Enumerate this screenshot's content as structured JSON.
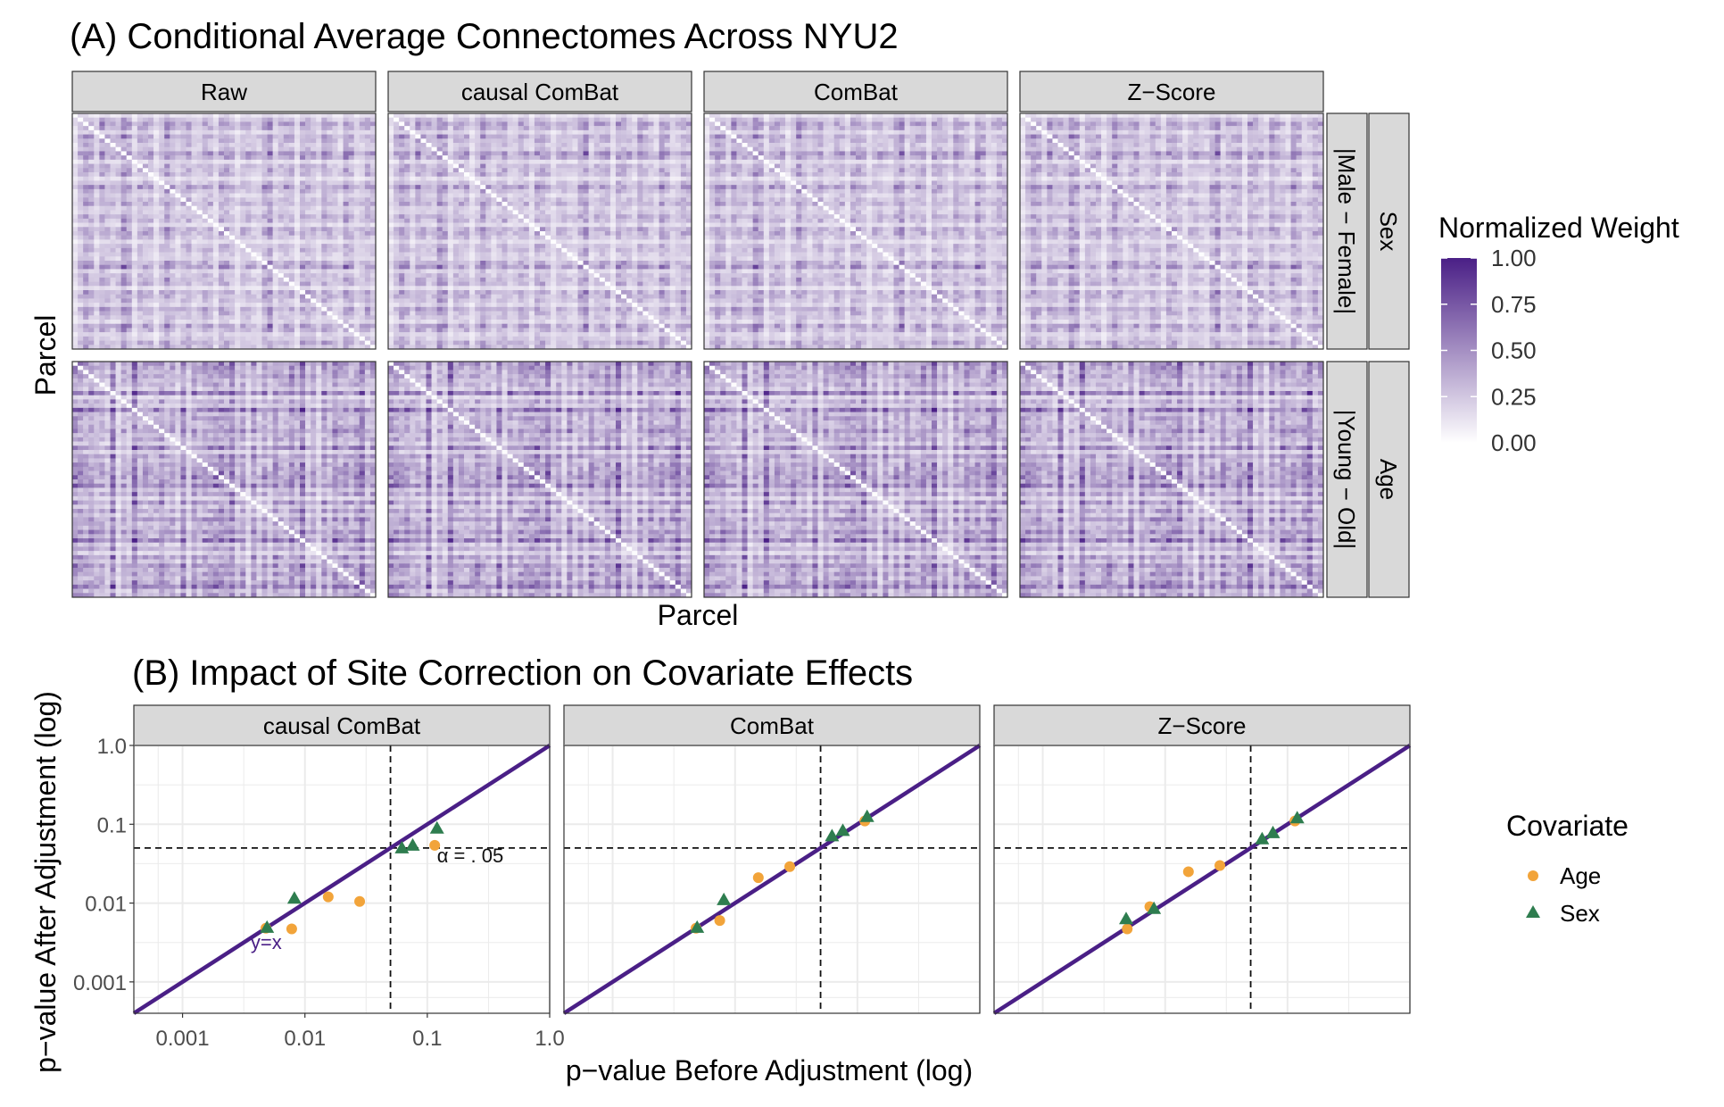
{
  "colors": {
    "strip_bg": "#d9d9d9",
    "heat_low": "#ffffff",
    "heat_high": "#4a1f86",
    "age": "#f2a43a",
    "sex": "#2e7d4f",
    "identity_line": "#4a1f86",
    "grid": "#ebebeb",
    "panel_border": "#333333"
  },
  "chart_data": [
    {
      "type": "heatmap",
      "title": "(A) Conditional Average Connectomes Across NYU2",
      "xlabel": "Parcel",
      "ylabel": "Parcel",
      "columns": [
        "Raw",
        "causal ComBat",
        "ComBat",
        "Z−Score"
      ],
      "rows": [
        {
          "label": "|Male − Female|",
          "group": "Sex"
        },
        {
          "label": "|Young − Old|",
          "group": "Age"
        }
      ],
      "legend": {
        "title": "Normalized Weight",
        "ticks": [
          "1.00",
          "0.75",
          "0.50",
          "0.25",
          "0.00"
        ],
        "range": [
          0,
          1
        ]
      }
    },
    {
      "type": "scatter",
      "title": "(B) Impact of Site Correction on Covariate Effects",
      "xlabel": "p−value Before Adjustment (log)",
      "ylabel": "p−value After Adjustment (log)",
      "xscale": "log",
      "yscale": "log",
      "xlim": [
        0.0004,
        1.0
      ],
      "ylim": [
        0.0004,
        1.0
      ],
      "x_ticks": [
        "0.001",
        "0.01",
        "0.1",
        "1.0"
      ],
      "y_ticks": [
        "1.0",
        "0.1",
        "0.01",
        "0.001"
      ],
      "reference_lines": {
        "alpha": 0.05
      },
      "annotations": {
        "identity": "y=x",
        "alpha": "α = . 05"
      },
      "legend": {
        "title": "Covariate",
        "placement": "right"
      },
      "panels": [
        {
          "label": "causal ComBat",
          "series": [
            {
              "name": "Age",
              "x": [
                0.0048,
                0.0078,
                0.0155,
                0.028,
                0.115
              ],
              "y": [
                0.0048,
                0.0047,
                0.012,
                0.0105,
                0.054
              ]
            },
            {
              "name": "Sex",
              "x": [
                0.0049,
                0.0082,
                0.062,
                0.076,
                0.12
              ],
              "y": [
                0.0049,
                0.0115,
                0.05,
                0.054,
                0.089
              ]
            }
          ]
        },
        {
          "label": "ComBat",
          "series": [
            {
              "name": "Age",
              "x": [
                0.0048,
                0.0075,
                0.0155,
                0.028,
                0.115
              ],
              "y": [
                0.0048,
                0.006,
                0.021,
                0.029,
                0.11
              ]
            },
            {
              "name": "Sex",
              "x": [
                0.0049,
                0.0081,
                0.062,
                0.076,
                0.12
              ],
              "y": [
                0.0049,
                0.011,
                0.071,
                0.083,
                0.125
              ]
            }
          ]
        },
        {
          "label": "Z−Score",
          "series": [
            {
              "name": "Age",
              "x": [
                0.0049,
                0.0075,
                0.0155,
                0.028,
                0.115
              ],
              "y": [
                0.0047,
                0.009,
                0.025,
                0.03,
                0.11
              ]
            },
            {
              "name": "Sex",
              "x": [
                0.0048,
                0.0081,
                0.062,
                0.076,
                0.12
              ],
              "y": [
                0.0063,
                0.0085,
                0.065,
                0.078,
                0.12
              ]
            }
          ]
        }
      ]
    }
  ]
}
